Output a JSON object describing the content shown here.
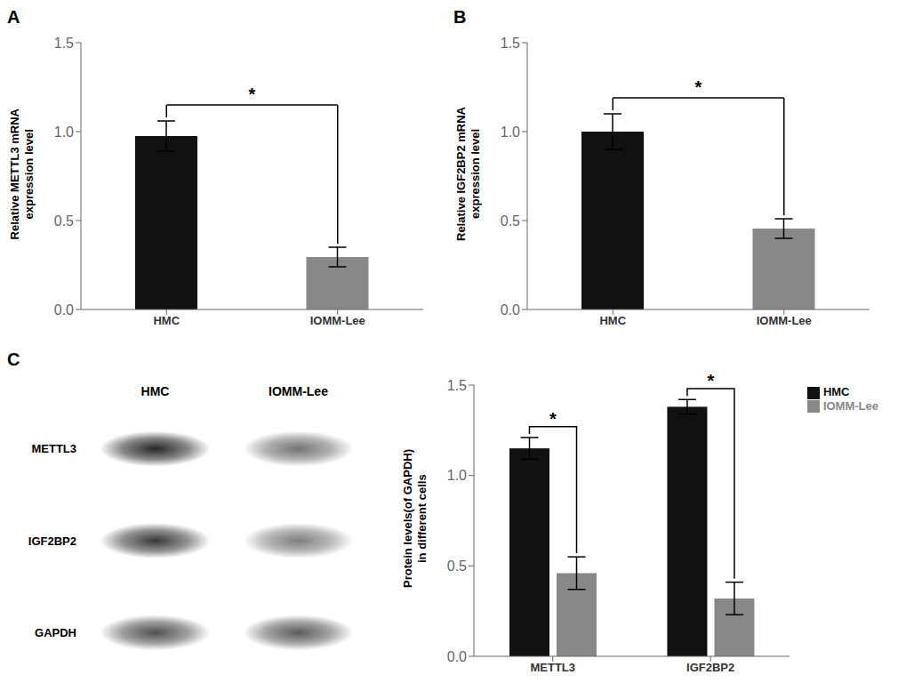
{
  "chart_data": [
    {
      "type": "bar",
      "title": "A",
      "categories": [
        "HMC",
        "IOMM-Lee"
      ],
      "values": [
        0.975,
        0.295
      ],
      "errors": [
        0.085,
        0.055
      ],
      "colors": [
        "#111111",
        "#888888"
      ],
      "ylabel": "Relative METTL3 mRNA\nexpression level",
      "ylim": [
        0,
        1.5
      ],
      "yticks": [
        {
          "value": 0,
          "label": "0.0"
        },
        0.5,
        {
          "value": 1,
          "label": "1.0"
        },
        1.5
      ],
      "annotations": [
        "*"
      ],
      "grid": false
    },
    {
      "type": "bar",
      "title": "B",
      "categories": [
        "HMC",
        "IOMM-Lee"
      ],
      "values": [
        1.0,
        0.455
      ],
      "errors": [
        0.1,
        0.055
      ],
      "colors": [
        "#111111",
        "#888888"
      ],
      "ylabel": "Relative IGF2BP2 mRNA\nexpression level",
      "ylim": [
        0,
        1.5
      ],
      "yticks": [
        {
          "value": 0,
          "label": "0.0"
        },
        0.5,
        {
          "value": 1,
          "label": "1.0"
        },
        1.5
      ],
      "annotations": [
        "*"
      ],
      "grid": false
    },
    {
      "type": "blot",
      "title": "C",
      "categories": [
        "HMC",
        "IOMM-Lee"
      ],
      "series": [
        {
          "name": "METTL3",
          "values": [
            0.93,
            0.6
          ]
        },
        {
          "name": "IGF2BP2",
          "values": [
            0.85,
            0.55
          ]
        },
        {
          "name": "GAPDH",
          "values": [
            0.75,
            0.7
          ]
        }
      ]
    },
    {
      "type": "bar",
      "categories": [
        "METTL3",
        "IGF2BP2"
      ],
      "series": [
        {
          "name": "HMC",
          "color": "#111111",
          "values": [
            1.15,
            1.38
          ],
          "errors": [
            0.06,
            0.04
          ]
        },
        {
          "name": "IOMM-Lee",
          "color": "#888888",
          "values": [
            0.46,
            0.32
          ],
          "errors": [
            0.09,
            0.09
          ]
        }
      ],
      "ylabel": "Protein levels(of GAPDH)\nin different cells",
      "ylim": [
        0,
        1.5
      ],
      "yticks": [
        {
          "value": 0,
          "label": "0.0"
        },
        0.5,
        {
          "value": 1,
          "label": "1.0"
        },
        1.5
      ],
      "annotations": [
        "*",
        "*"
      ],
      "legend": "right",
      "grid": false
    }
  ]
}
